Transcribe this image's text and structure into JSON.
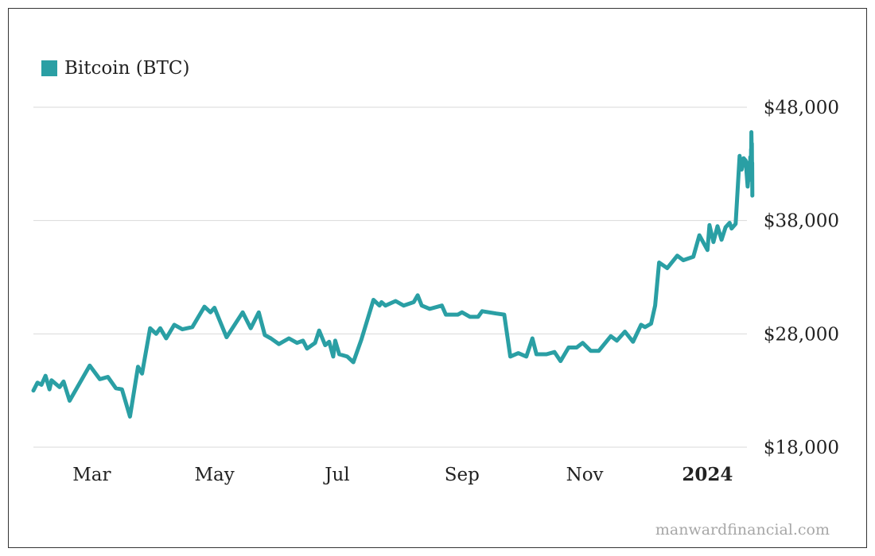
{
  "colors": {
    "series": "#2a9fa4",
    "grid": "#d9d9d9",
    "text": "#222222",
    "watermark": "#a7a7a7"
  },
  "watermark": "manwardfinancial.com",
  "chart_data": {
    "type": "line",
    "title": "",
    "xlabel": "",
    "ylabel": "",
    "legend_position": "top-left",
    "grid": true,
    "ylim": [
      18000,
      48000
    ],
    "xlim": [
      "2023-01-31",
      "2024-01-23"
    ],
    "y_ticks": [
      {
        "value": 48000,
        "label": "$48,000"
      },
      {
        "value": 38000,
        "label": "$38,000"
      },
      {
        "value": 28000,
        "label": "$28,000"
      },
      {
        "value": 18000,
        "label": "$18,000"
      }
    ],
    "x_ticks": [
      {
        "value": "2023-03-01",
        "label": "Mar",
        "bold": false
      },
      {
        "value": "2023-05-01",
        "label": "May",
        "bold": false
      },
      {
        "value": "2023-07-01",
        "label": "Jul",
        "bold": false
      },
      {
        "value": "2023-09-01",
        "label": "Sep",
        "bold": false
      },
      {
        "value": "2023-11-01",
        "label": "Nov",
        "bold": false
      },
      {
        "value": "2024-01-01",
        "label": "2024",
        "bold": true
      }
    ],
    "series": [
      {
        "name": "Bitcoin (BTC)",
        "points": [
          [
            "2023-01-31",
            23000
          ],
          [
            "2023-02-02",
            23700
          ],
          [
            "2023-02-04",
            23500
          ],
          [
            "2023-02-06",
            24300
          ],
          [
            "2023-02-08",
            23100
          ],
          [
            "2023-02-09",
            23900
          ],
          [
            "2023-02-13",
            23300
          ],
          [
            "2023-02-15",
            23800
          ],
          [
            "2023-02-18",
            22100
          ],
          [
            "2023-02-28",
            25200
          ],
          [
            "2023-03-05",
            24000
          ],
          [
            "2023-03-09",
            24200
          ],
          [
            "2023-03-13",
            23200
          ],
          [
            "2023-03-16",
            23100
          ],
          [
            "2023-03-20",
            20700
          ],
          [
            "2023-03-24",
            25100
          ],
          [
            "2023-03-26",
            24500
          ],
          [
            "2023-03-30",
            28500
          ],
          [
            "2023-04-02",
            28000
          ],
          [
            "2023-04-04",
            28500
          ],
          [
            "2023-04-07",
            27600
          ],
          [
            "2023-04-11",
            28800
          ],
          [
            "2023-04-15",
            28400
          ],
          [
            "2023-04-20",
            28600
          ],
          [
            "2023-04-26",
            30400
          ],
          [
            "2023-04-29",
            29900
          ],
          [
            "2023-05-01",
            30300
          ],
          [
            "2023-05-07",
            27700
          ],
          [
            "2023-05-15",
            29900
          ],
          [
            "2023-05-19",
            28500
          ],
          [
            "2023-05-23",
            29900
          ],
          [
            "2023-05-26",
            27900
          ],
          [
            "2023-05-29",
            27600
          ],
          [
            "2023-06-02",
            27100
          ],
          [
            "2023-06-07",
            27600
          ],
          [
            "2023-06-11",
            27200
          ],
          [
            "2023-06-14",
            27400
          ],
          [
            "2023-06-16",
            26700
          ],
          [
            "2023-06-20",
            27200
          ],
          [
            "2023-06-22",
            28300
          ],
          [
            "2023-06-25",
            27000
          ],
          [
            "2023-06-27",
            27300
          ],
          [
            "2023-06-29",
            26000
          ],
          [
            "2023-06-30",
            27400
          ],
          [
            "2023-07-02",
            26200
          ],
          [
            "2023-07-06",
            26000
          ],
          [
            "2023-07-09",
            25500
          ],
          [
            "2023-07-13",
            27500
          ],
          [
            "2023-07-19",
            31000
          ],
          [
            "2023-07-22",
            30500
          ],
          [
            "2023-07-23",
            30800
          ],
          [
            "2023-07-25",
            30500
          ],
          [
            "2023-07-30",
            30900
          ],
          [
            "2023-08-03",
            30500
          ],
          [
            "2023-08-08",
            30800
          ],
          [
            "2023-08-10",
            31400
          ],
          [
            "2023-08-12",
            30500
          ],
          [
            "2023-08-16",
            30200
          ],
          [
            "2023-08-22",
            30500
          ],
          [
            "2023-08-24",
            29700
          ],
          [
            "2023-08-30",
            29700
          ],
          [
            "2023-09-01",
            29900
          ],
          [
            "2023-09-05",
            29500
          ],
          [
            "2023-09-09",
            29500
          ],
          [
            "2023-09-11",
            30000
          ],
          [
            "2023-09-18",
            29800
          ],
          [
            "2023-09-22",
            29700
          ],
          [
            "2023-09-25",
            26000
          ],
          [
            "2023-09-29",
            26300
          ],
          [
            "2023-10-03",
            26000
          ],
          [
            "2023-10-06",
            27600
          ],
          [
            "2023-10-08",
            26200
          ],
          [
            "2023-10-13",
            26200
          ],
          [
            "2023-10-17",
            26400
          ],
          [
            "2023-10-20",
            25600
          ],
          [
            "2023-10-24",
            26800
          ],
          [
            "2023-10-28",
            26800
          ],
          [
            "2023-10-31",
            27200
          ],
          [
            "2023-11-04",
            26500
          ],
          [
            "2023-11-08",
            26500
          ],
          [
            "2023-11-14",
            27800
          ],
          [
            "2023-11-17",
            27400
          ],
          [
            "2023-11-21",
            28200
          ],
          [
            "2023-11-25",
            27300
          ],
          [
            "2023-11-29",
            28800
          ],
          [
            "2023-12-01",
            28600
          ],
          [
            "2023-12-04",
            28900
          ],
          [
            "2023-12-06",
            30500
          ],
          [
            "2023-12-08",
            34300
          ],
          [
            "2023-12-12",
            33800
          ],
          [
            "2023-12-17",
            34900
          ],
          [
            "2023-12-20",
            34500
          ],
          [
            "2023-12-25",
            34800
          ],
          [
            "2023-12-28",
            36700
          ],
          [
            "2024-01-01",
            35400
          ],
          [
            "2024-01-02",
            37600
          ],
          [
            "2024-01-04",
            36100
          ],
          [
            "2024-01-06",
            37500
          ],
          [
            "2024-01-08",
            36300
          ],
          [
            "2024-01-10",
            37400
          ],
          [
            "2024-01-12",
            37800
          ],
          [
            "2024-01-13",
            37300
          ],
          [
            "2024-01-15",
            37700
          ],
          [
            "2024-01-17",
            43700
          ],
          [
            "2024-01-18",
            42500
          ],
          [
            "2024-01-19",
            43500
          ],
          [
            "2024-01-20",
            43300
          ],
          [
            "2024-01-21",
            41000
          ],
          [
            "2024-01-22",
            43200
          ],
          [
            "2024-01-22",
            42700
          ],
          [
            "2024-01-22",
            41600
          ],
          [
            "2024-01-22",
            42400
          ],
          [
            "2024-01-22",
            43600
          ],
          [
            "2024-01-22",
            42800
          ],
          [
            "2024-01-22",
            43100
          ],
          [
            "2024-01-22",
            42200
          ],
          [
            "2024-01-22",
            42500
          ],
          [
            "2024-01-22",
            44300
          ],
          [
            "2024-01-22",
            43800
          ],
          [
            "2024-01-22",
            45800
          ],
          [
            "2024-01-22",
            44900
          ],
          [
            "2024-01-23",
            42300
          ],
          [
            "2024-01-23",
            44800
          ],
          [
            "2024-01-23",
            42400
          ],
          [
            "2024-01-23",
            43100
          ],
          [
            "2024-01-23",
            40200
          ]
        ]
      }
    ]
  }
}
